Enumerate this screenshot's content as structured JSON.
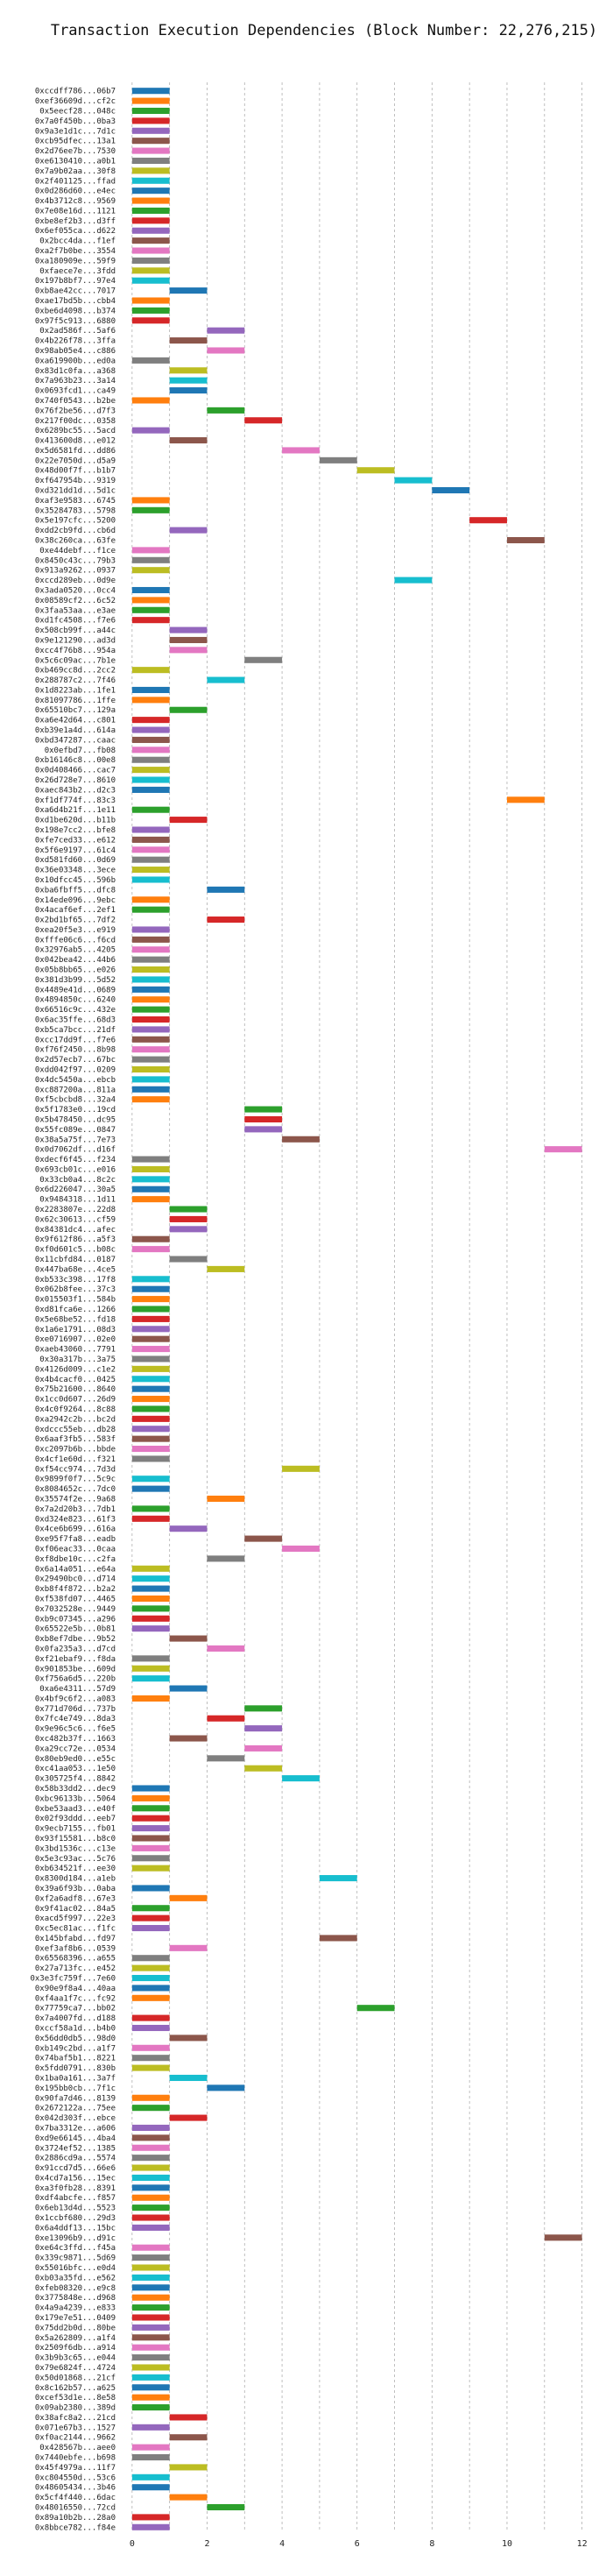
{
  "chart_data": {
    "type": "bar",
    "orientation": "horizontal-gantt",
    "title": "Transaction Execution Dependencies (Block Number: 22,276,215)",
    "xlabel": "",
    "ylabel": "",
    "xlim": [
      -0.3,
      12.5
    ],
    "xticks": [
      0,
      2,
      4,
      6,
      8,
      10,
      12
    ],
    "grid": true,
    "bar_length": 1,
    "palette": [
      "#1f77b4",
      "#ff7f0e",
      "#2ca02c",
      "#d62728",
      "#9467bd",
      "#8c564b",
      "#e377c2",
      "#7f7f7f",
      "#bcbd22",
      "#17becf"
    ],
    "transactions": [
      "0xccdff786...06b7",
      "0xef36609d...cf2c",
      "0x5eecf28...048c",
      "0x7a0f450b...0ba3",
      "0x9a3e1d1c...7d1c",
      "0xcb95dfec...13a1",
      "0x2d76ee7b...7530",
      "0xe6130410...a0b1",
      "0x7a9b02aa...30f8",
      "0x2f401125...ffad",
      "0x0d286d60...e4ec",
      "0x4b3712c8...9569",
      "0x7e08e16d...1121",
      "0xbe8ef2b3...d3ff",
      "0x6ef055ca...d622",
      "0x2bcc4da...f1ef",
      "0xa2f7b0be...3554",
      "0xa180909e...59f9",
      "0xfaece7e...3fdd",
      "0x197b8bf7...97e4",
      "0xb8ae42cc...7017",
      "0xae17bd5b...cbb4",
      "0xbe6d4098...b374",
      "0x97f5c913...6880",
      "0x2ad586f...5af6",
      "0x4b226f78...3ffa",
      "0x98ab05e4...c886",
      "0xa619900b...ed0a",
      "0x83d1c0fa...a368",
      "0x7a963b23...3a14",
      "0x0693fcd1...ca49",
      "0x740f0543...b2be",
      "0x76f2be56...d7f3",
      "0x217f00dc...0358",
      "0x6289bc55...5acd",
      "0x413600d8...e012",
      "0x5d6581fd...dd86",
      "0x22e7050d...d5a9",
      "0x48d00f7f...b1b7",
      "0xf647954b...9319",
      "0xd321dd1d...5d1c",
      "0xaf3e9583...6745",
      "0x35284783...5798",
      "0x5e197cfc...5200",
      "0xdd2cb9fd...cb6d",
      "0x38c260ca...63fe",
      "0xe44debf...f1ce",
      "0x8450c43c...79b3",
      "0x913a9262...0937",
      "0xccd289eb...0d9e",
      "0x3ada0520...0cc4",
      "0x08589cf2...6c52",
      "0x3faa53aa...e3ae",
      "0xd1fc4508...f7e6",
      "0x508cb99f...a44c",
      "0x9e121290...ad3d",
      "0xcc4f76b8...954a",
      "0x5c6c09ac...7b1e",
      "0xb469cc8d...2cc2",
      "0x288787c2...7f46",
      "0x1d8223ab...1fe1",
      "0x81097786...1ffe",
      "0x65510bc7...129a",
      "0xa6e42d64...c801",
      "0xb39e1a4d...614a",
      "0xbd347287...caac",
      "0x0efbd7...fb08",
      "0xb16146c8...00e8",
      "0x0d408466...cac7",
      "0x26d728e7...8610",
      "0xaec843b2...d2c3",
      "0xf1df774f...83c3",
      "0xa6d4b21f...1e11",
      "0xd1be620d...b11b",
      "0x198e7cc2...bfe8",
      "0xfe7ced33...e612",
      "0x5f6e9197...61c4",
      "0xd581fd60...0d69",
      "0x36e03348...3ece",
      "0x10dfcc45...596b",
      "0xba6fbff5...dfc8",
      "0x14ede096...9ebc",
      "0x4acaf6ef...2ef1",
      "0x2bd1bf65...7df2",
      "0xea20f5e3...e919",
      "0xfffe06c6...f6cd",
      "0x32976ab5...4205",
      "0x042bea42...44b6",
      "0x05b8bb65...e026",
      "0x381d3b99...5d52",
      "0x4489e41d...0689",
      "0x4894850c...6240",
      "0x66516c9c...432e",
      "0x6ac35ffe...68d3",
      "0xb5ca7bcc...21df",
      "0xcc17dd9f...f7e6",
      "0xf76f2450...8b98",
      "0x2d57ecb7...67bc",
      "0xdd042f97...0209",
      "0x4dc5450a...ebcb",
      "0xc887200a...811a",
      "0xf5cbcbd8...32a4",
      "0x5f1783e0...19cd",
      "0x5b478450...dc95",
      "0x55fc089e...0847",
      "0x38a5a75f...7e73",
      "0x0d7062df...d16f",
      "0xdecf6f45...f234",
      "0x693cb01c...e016",
      "0x33cb0a4...8c2c",
      "0x6d226047...30a5",
      "0x9484318...1d11",
      "0x2283807e...22d8",
      "0x62c30613...cf59",
      "0x84381dc4...afec",
      "0x9f612f86...a5f3",
      "0xf0d601c5...b08c",
      "0x11cbfd84...0187",
      "0x447ba68e...4ce5",
      "0xb533c398...17f8",
      "0x062b8fee...37c3",
      "0x015503f1...584b",
      "0xd81fca6e...1266",
      "0x5e68be52...fd18",
      "0x1a6e1791...08d3",
      "0xe0716907...02e0",
      "0xaeb43060...7791",
      "0x30a317b...3a75",
      "0x4126d009...c1e2",
      "0x4b4cacf0...0425",
      "0x75b21600...8640",
      "0x1cc0d607...26d9",
      "0x4c0f9264...8c88",
      "0xa2942c2b...bc2d",
      "0xdccc55eb...db28",
      "0x6aaf3fb5...583f",
      "0xc2097b6b...bbde",
      "0x4cf1e60d...f321",
      "0xf54cc974...7d3d",
      "0x9899f0f7...5c9c",
      "0x8084652c...7dc0",
      "0x35574f2e...9a68",
      "0x7a2d20b3...7db1",
      "0xd324e823...61f3",
      "0x4ce6b699...616a",
      "0xe95f7fa8...eadb",
      "0xf06eac33...0caa",
      "0xf8dbe10c...c2fa",
      "0x6a14a051...e64a",
      "0x29490bc0...d714",
      "0xb8f4f872...b2a2",
      "0xf538fd07...4465",
      "0x7032528e...9449",
      "0xb9c07345...a296",
      "0x65522e5b...0b81",
      "0xb8ef7dbe...9b52",
      "0x0fa235a3...d7cd",
      "0xf21ebaf9...f8da",
      "0x901853be...609d",
      "0xf756a6d5...220b",
      "0xa6e4311...57d9",
      "0x4bf9c6f2...a083",
      "0x771d706d...737b",
      "0x7fc4e749...8da3",
      "0x9e96c5c6...f6e5",
      "0xc482b37f...1663",
      "0xa29cc72e...0534",
      "0x80eb9ed0...e55c",
      "0xc41aa053...1e50",
      "0x305725f4...8842",
      "0x58b33dd2...dec9",
      "0xbc96133b...5064",
      "0xbe53aad3...e40f",
      "0x02f93ddd...eeb7",
      "0x9ecb7155...fb01",
      "0x93f15581...b8c0",
      "0x3bd1536c...c13e",
      "0x5e3c93ac...5c76",
      "0xb634521f...ee30",
      "0x8300d184...a1eb",
      "0x39a6f93b...0aba",
      "0xf2a6adf8...67e3",
      "0x9f41ac02...84a5",
      "0xacd5f997...22e3",
      "0xc5ec81ac...f1fc",
      "0x145bfabd...fd97",
      "0xef3af8b6...0539",
      "0x65568396...a655",
      "0x27a713fc...e452",
      "0x3e3fc759f...7e60",
      "0x90e9f8a4...40aa",
      "0xf4aa1f7c...fc92",
      "0x77759ca7...bb02",
      "0x7a4007fd...d188",
      "0xccf58a1d...b4b0",
      "0x56dd0db5...98d0",
      "0xb149c2bd...a1f7",
      "0x74baf5b1...8221",
      "0x5fdd0791...830b",
      "0x1ba0a161...3a7f",
      "0x195bb0cb...7f1c",
      "0x90fa7d46...8139",
      "0x2672122a...75ee",
      "0x042d303f...ebce",
      "0x7ba3312e...a606",
      "0xd9e66145...4ba4",
      "0x3724ef52...1385",
      "0x2886cd9a...5574",
      "0x91ccd7d5...66e6",
      "0x4cd7a156...15ec",
      "0xa3f0fb28...8391",
      "0xdf4abcfe...f857",
      "0x6eb13d4d...5523",
      "0x1ccbf680...29d3",
      "0x6a4ddf13...15bc",
      "0xe13096b9...d91c",
      "0xe64c3ffd...f45a",
      "0x339c9871...5d69",
      "0x55016bfc...e0d4",
      "0xb03a35fd...e562",
      "0xfeb08320...e9c8",
      "0x3775848e...d968",
      "0x4a9a4239...e833",
      "0x179e7e51...0409",
      "0x75dd2b0d...80be",
      "0x5a262809...a1f4",
      "0x2509f6db...a914",
      "0x3b9b3c65...e044",
      "0x79e6824f...4724",
      "0x50d01868...21cf",
      "0x8c162b57...a625",
      "0xcef53d1e...8e58",
      "0x09ab2380...389d",
      "0x38afc8a2...21cd",
      "0x071e67b3...1527",
      "0xf0ac2144...9662",
      "0x428567b...aee0",
      "0x7440ebfe...b698",
      "0x45f4979a...11f7",
      "0xc804550d...53c6",
      "0x48605434...3b46",
      "0x5cf4f440...6dac",
      "0x48016550...72cd",
      "0x89a10b2b...28a0",
      "0x8bbce782...f84e"
    ],
    "start": [
      0,
      0,
      0,
      0,
      0,
      0,
      0,
      0,
      0,
      0,
      0,
      0,
      0,
      0,
      0,
      0,
      0,
      0,
      0,
      0,
      1,
      0,
      0,
      0,
      2,
      1,
      2,
      0,
      1,
      1,
      1,
      0,
      2,
      3,
      0,
      1,
      4,
      5,
      6,
      7,
      8,
      0,
      0,
      9,
      1,
      10,
      0,
      0,
      0,
      7,
      0,
      0,
      0,
      0,
      1,
      1,
      1,
      3,
      0,
      2,
      0,
      0,
      1,
      0,
      0,
      0,
      0,
      0,
      0,
      0,
      0,
      10,
      0,
      1,
      0,
      0,
      0,
      0,
      0,
      0,
      2,
      0,
      0,
      2,
      0,
      0,
      0,
      0,
      0,
      0,
      0,
      0,
      0,
      0,
      0,
      0,
      0,
      0,
      0,
      0,
      0,
      0,
      3,
      3,
      3,
      4,
      11,
      0,
      0,
      0,
      0,
      0,
      1,
      1,
      1,
      0,
      0,
      1,
      2,
      0,
      0,
      0,
      0,
      0,
      0,
      0,
      0,
      0,
      0,
      0,
      0,
      0,
      0,
      0,
      0,
      0,
      0,
      0,
      4,
      0,
      0,
      2,
      0,
      0,
      1,
      3,
      4,
      2,
      0,
      0,
      0,
      0,
      0,
      0,
      0,
      1,
      2,
      0,
      0,
      0,
      1,
      0,
      3,
      2,
      3,
      1,
      3,
      2,
      3,
      4,
      0,
      0,
      0,
      0,
      0,
      0,
      0,
      0,
      0,
      5,
      0,
      1,
      0,
      0,
      0,
      5,
      1,
      0,
      0,
      0,
      0,
      0,
      6,
      0,
      0,
      1,
      0,
      0,
      0,
      1,
      2,
      0,
      0,
      1,
      0,
      0,
      0,
      0,
      0,
      0,
      0,
      0,
      0,
      0,
      0,
      11,
      0,
      0,
      0,
      0,
      0,
      0,
      0,
      0,
      0,
      0,
      0,
      0,
      0,
      0,
      0,
      0,
      0,
      1,
      0,
      1,
      0,
      0,
      1,
      0,
      0,
      1,
      2,
      0,
      0
    ]
  }
}
